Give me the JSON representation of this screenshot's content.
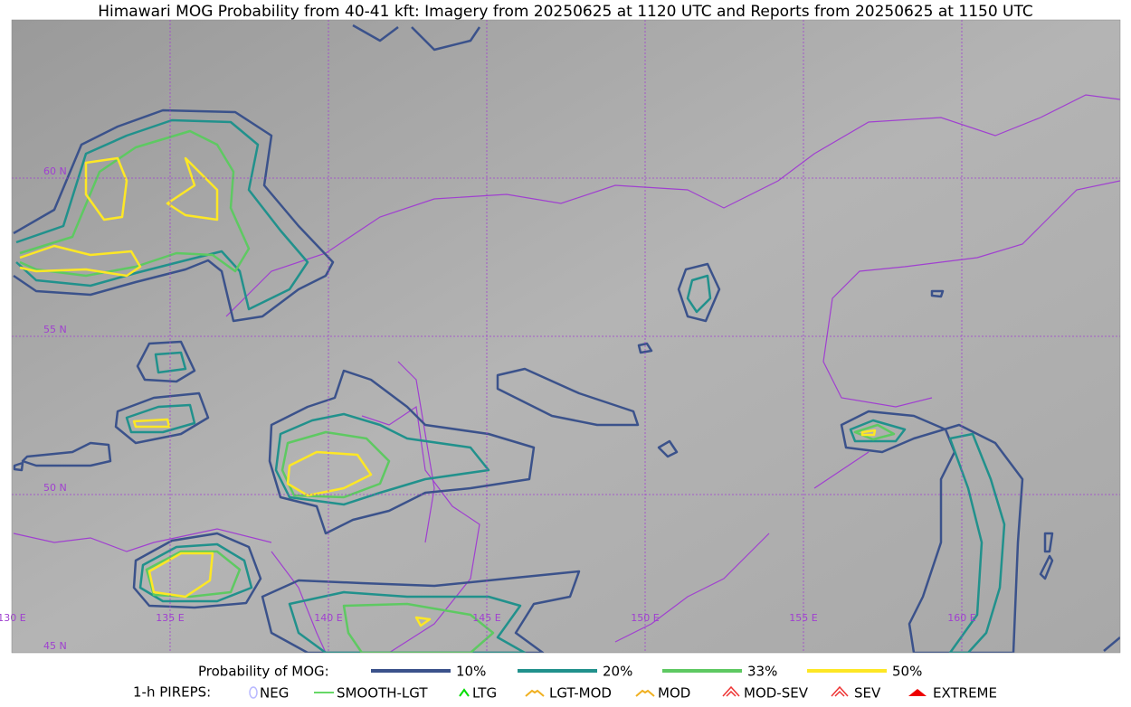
{
  "title": "Himawari MOG Probability from 40-41 kft: Imagery from 20250625 at 1120 UTC and Reports from 20250625 at 1150 UTC",
  "map": {
    "lat_labels": [
      "60 N",
      "55 N",
      "50 N",
      "45 N"
    ],
    "lon_labels": [
      "130 E",
      "135 E",
      "140 E",
      "145 E",
      "150 E",
      "155 E",
      "160 E"
    ]
  },
  "legend": {
    "probability": {
      "label": "Probability of MOG:",
      "items": [
        {
          "label": "10%",
          "color": "#3b528b"
        },
        {
          "label": "20%",
          "color": "#21918c"
        },
        {
          "label": "33%",
          "color": "#5ec962"
        },
        {
          "label": "50%",
          "color": "#fde725"
        }
      ]
    },
    "pireps": {
      "label": "1-h PIREPS:",
      "items": [
        {
          "label": "NEG",
          "color": "#b8b8ff"
        },
        {
          "label": "SMOOTH-LGT",
          "color": "#33cc33"
        },
        {
          "label": "LTG",
          "color": "#00dd00"
        },
        {
          "label": "LGT-MOD",
          "color": "#f0b020"
        },
        {
          "label": "MOD",
          "color": "#f0b020"
        },
        {
          "label": "MOD-SEV",
          "color": "#ee3333"
        },
        {
          "label": "SEV",
          "color": "#ee3333"
        },
        {
          "label": "EXTREME",
          "color": "#ee0000"
        }
      ]
    }
  }
}
